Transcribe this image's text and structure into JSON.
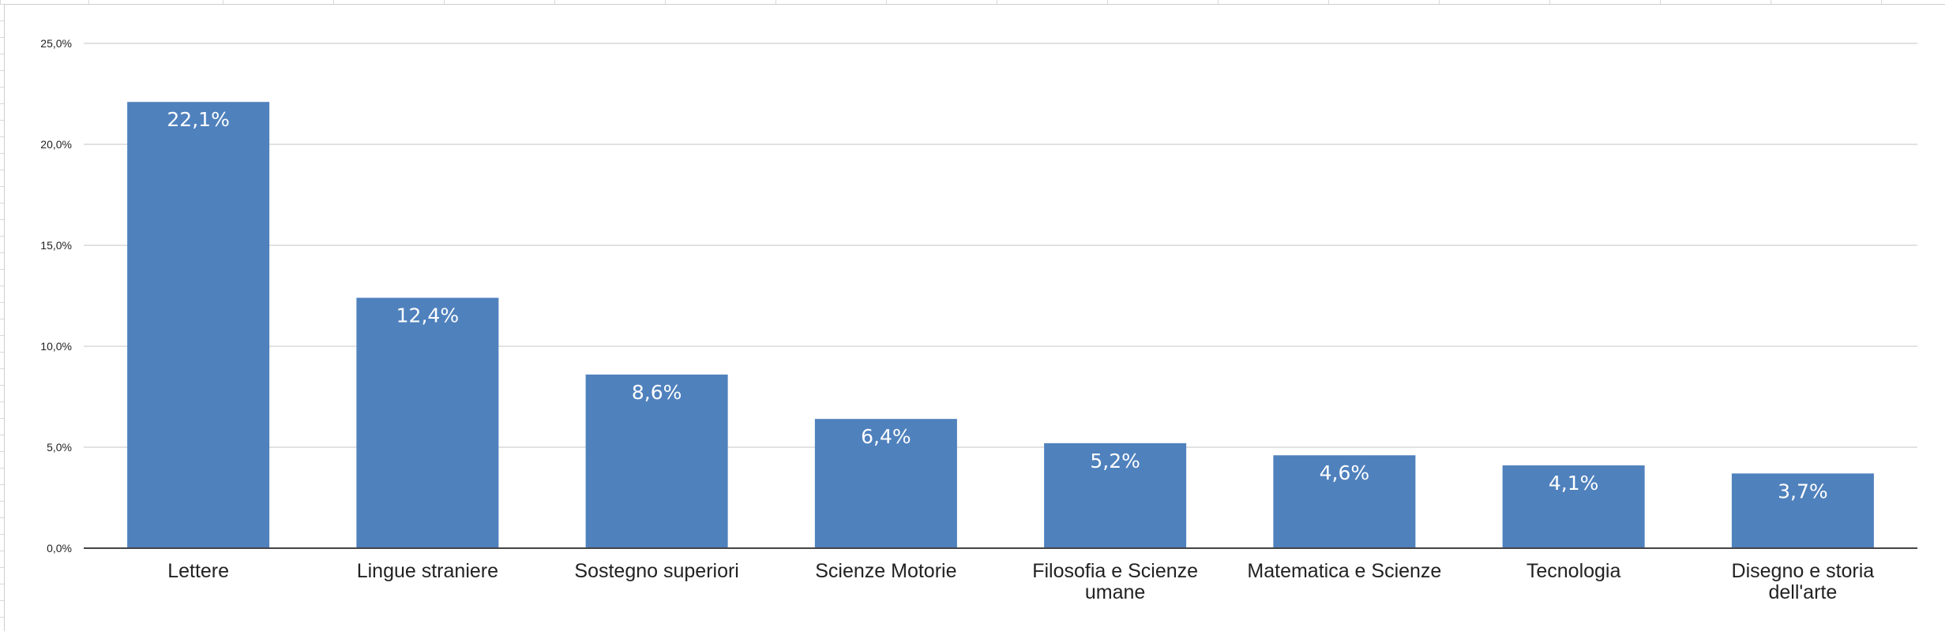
{
  "chart_data": {
    "type": "bar",
    "title": "",
    "xlabel": "",
    "ylabel": "",
    "categories": [
      "Lettere",
      "Lingue straniere",
      "Sostegno superiori",
      "Scienze Motorie",
      "Filosofia e Scienze umane",
      "Matematica e Scienze",
      "Tecnologia",
      "Disegno e storia dell'arte"
    ],
    "values": [
      22.1,
      12.4,
      8.6,
      6.4,
      5.2,
      4.6,
      4.1,
      3.7
    ],
    "data_labels": [
      "22,1%",
      "12,4%",
      "8,6%",
      "6,4%",
      "5,2%",
      "4,6%",
      "4,1%",
      "3,7%"
    ],
    "ylim": [
      0,
      25
    ],
    "yticks": [
      0,
      5,
      10,
      15,
      20,
      25
    ],
    "ytick_labels": [
      "0,0%",
      "5,0%",
      "10,0%",
      "15,0%",
      "20,0%",
      "25,0%"
    ],
    "grid": true,
    "legend": "none",
    "bar_color": "#4f81bd",
    "data_label_color": "#ffffff"
  }
}
